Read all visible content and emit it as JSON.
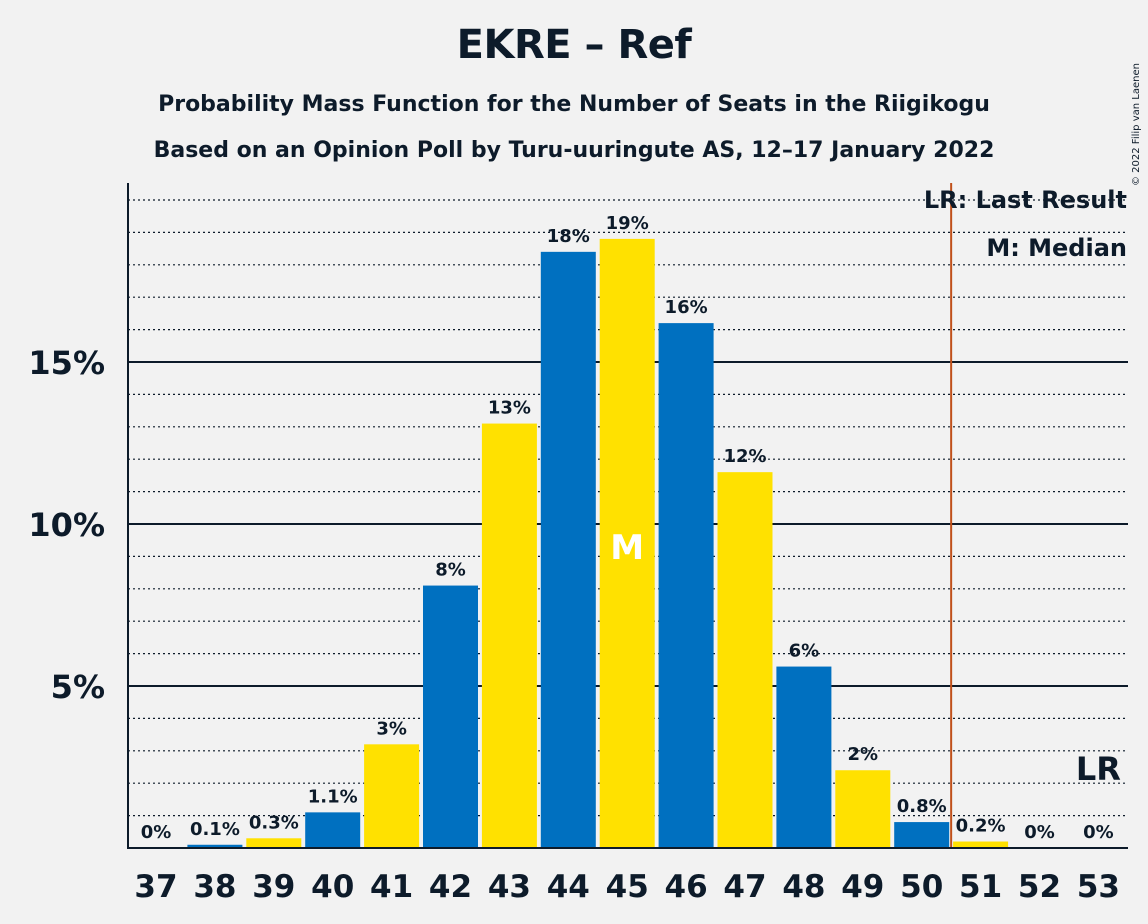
{
  "title": "EKRE – Ref",
  "subtitle1": "Probability Mass Function for the Number of Seats in the Riigikogu",
  "subtitle2": "Based on an Opinion Poll by Turu-uuringute AS, 12–17 January 2022",
  "copyright": "© 2022 Filip van Laenen",
  "legend": {
    "last_result": "LR: Last Result",
    "median": "M: Median"
  },
  "colors": {
    "blue": "#0070c0",
    "yellow": "#ffe100",
    "last_result_line": "#c0501a",
    "text": "#0d1b2a",
    "background": "#f2f2f2"
  },
  "chart_data": {
    "type": "bar",
    "categories": [
      "37",
      "38",
      "39",
      "40",
      "41",
      "42",
      "43",
      "44",
      "45",
      "46",
      "47",
      "48",
      "49",
      "50",
      "51",
      "52",
      "53"
    ],
    "values": [
      0,
      0.1,
      0.3,
      1.1,
      3.2,
      8.1,
      13.1,
      18.4,
      18.8,
      16.2,
      11.6,
      5.6,
      2.4,
      0.8,
      0.2,
      0,
      0
    ],
    "labels": [
      "0%",
      "0.1%",
      "0.3%",
      "1.1%",
      "3%",
      "8%",
      "13%",
      "18%",
      "19%",
      "16%",
      "12%",
      "6%",
      "2%",
      "0.8%",
      "0.2%",
      "0%",
      "0%"
    ],
    "ytick_labels": [
      {
        "value": 5,
        "label": "5%"
      },
      {
        "value": 10,
        "label": "10%"
      },
      {
        "value": 15,
        "label": "15%"
      }
    ],
    "ylim": [
      0,
      20.5
    ],
    "gridlines_dotted_every": 1,
    "median_seat": "45",
    "median_marker": "M",
    "last_result_after_seat": "50",
    "last_result_marker": "LR",
    "last_result_marker_seat": "53",
    "bar_colors": "alternating blue/yellow starting blue at 38"
  }
}
